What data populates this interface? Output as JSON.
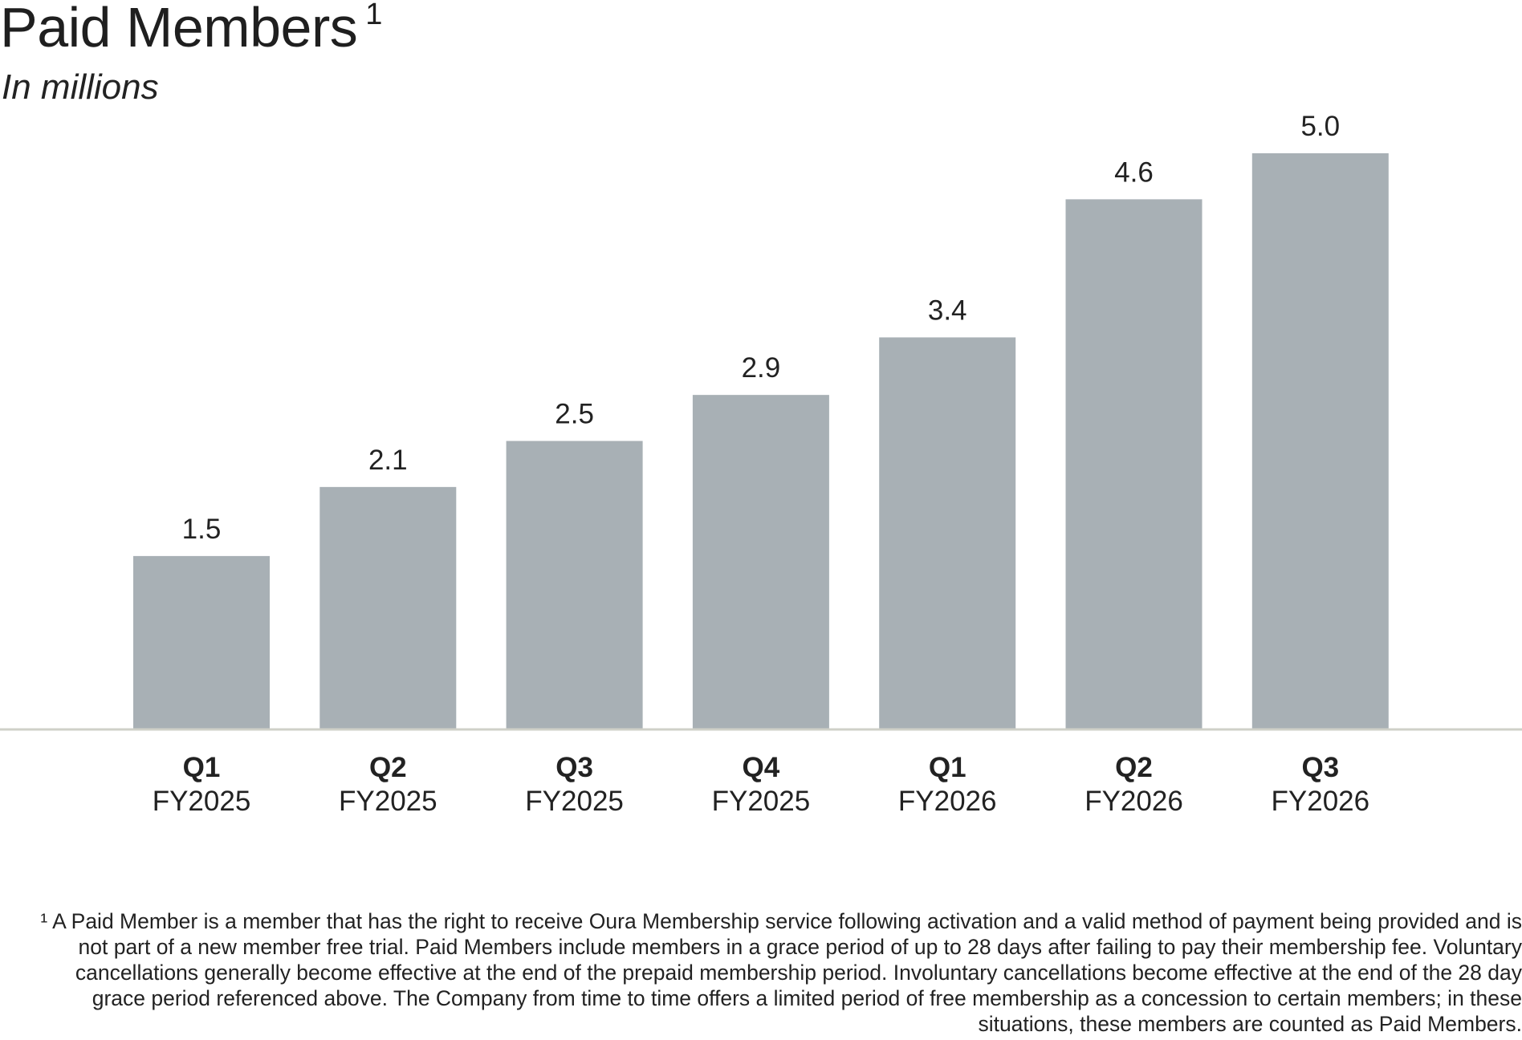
{
  "page": {
    "title": "Paid Members",
    "title_sup": "1",
    "subtitle": "In millions",
    "footnote_lines": [
      "¹ A Paid Member is a member that has the right to receive Oura Membership service following activation and a valid method of payment being provided and is",
      "not part of a new member free trial. Paid Members include members in a grace period of up to 28 days after failing to pay their membership fee. Voluntary",
      "cancellations generally become effective at the end of the prepaid membership period. Involuntary cancellations become effective at the end of the 28 day",
      "grace period referenced above.  The Company from time to time offers a limited period of free membership as a concession to certain members; in these",
      "situations, these members are counted as Paid Members."
    ]
  },
  "chart_data": {
    "type": "bar",
    "title": "Paid Members",
    "subtitle": "In millions",
    "categories": [
      {
        "quarter": "Q1",
        "year": "FY2025"
      },
      {
        "quarter": "Q2",
        "year": "FY2025"
      },
      {
        "quarter": "Q3",
        "year": "FY2025"
      },
      {
        "quarter": "Q4",
        "year": "FY2025"
      },
      {
        "quarter": "Q1",
        "year": "FY2026"
      },
      {
        "quarter": "Q2",
        "year": "FY2026"
      },
      {
        "quarter": "Q3",
        "year": "FY2026"
      }
    ],
    "values": [
      1.5,
      2.1,
      2.5,
      2.9,
      3.4,
      4.6,
      5.0
    ],
    "value_labels": [
      "1.5",
      "2.1",
      "2.5",
      "2.9",
      "3.4",
      "4.6",
      "5.0"
    ],
    "xlabel": "",
    "ylabel": "",
    "ylim": [
      0,
      5.0
    ],
    "grid": false,
    "legend": "none",
    "colors": {
      "bar": "#a8b0b5",
      "baseline": "#cfd0c8",
      "text": "#222222"
    }
  }
}
